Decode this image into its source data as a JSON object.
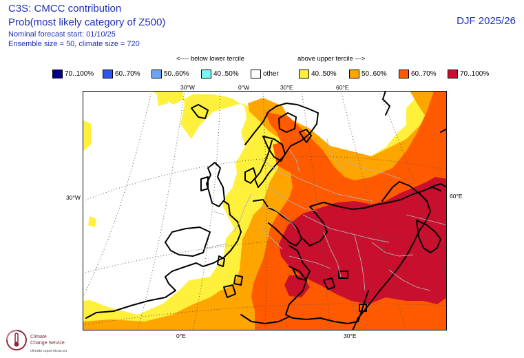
{
  "header": {
    "title": "C3S: CMCC contribution",
    "subtitle": "Prob(most likely category of Z500)",
    "forecast_start": "Nominal forecast start: 01/10/25",
    "ensemble": "Ensemble size = 50, climate size = 720",
    "season": "DJF 2025/26"
  },
  "legend": {
    "below_label": "<---- below lower tercile",
    "above_label": "above upper tercile --->",
    "items": [
      {
        "label": "70..100%",
        "color": "#00008c"
      },
      {
        "label": "60..70%",
        "color": "#2a55f0"
      },
      {
        "label": "50..60%",
        "color": "#6aa5f5"
      },
      {
        "label": "40..50%",
        "color": "#7cf5f5"
      },
      {
        "label": "other",
        "color": "#ffffff"
      },
      {
        "label": "40..50%",
        "color": "#fff03c"
      },
      {
        "label": "50..60%",
        "color": "#ffa500"
      },
      {
        "label": "60..70%",
        "color": "#ff5a00"
      },
      {
        "label": "70..100%",
        "color": "#c8102e"
      }
    ]
  },
  "map": {
    "labels": {
      "top_30w": "30°W",
      "top_0e": "0°W",
      "top_30e": "30°E",
      "top_60e": "60°E",
      "left_30w": "30°W",
      "right_60e": "60°E",
      "bottom_0e": "0°E",
      "bottom_30e": "30°E"
    }
  },
  "logo": {
    "line1": "Climate",
    "line2": "Change Service",
    "url": "climate.copernicus.eu"
  }
}
